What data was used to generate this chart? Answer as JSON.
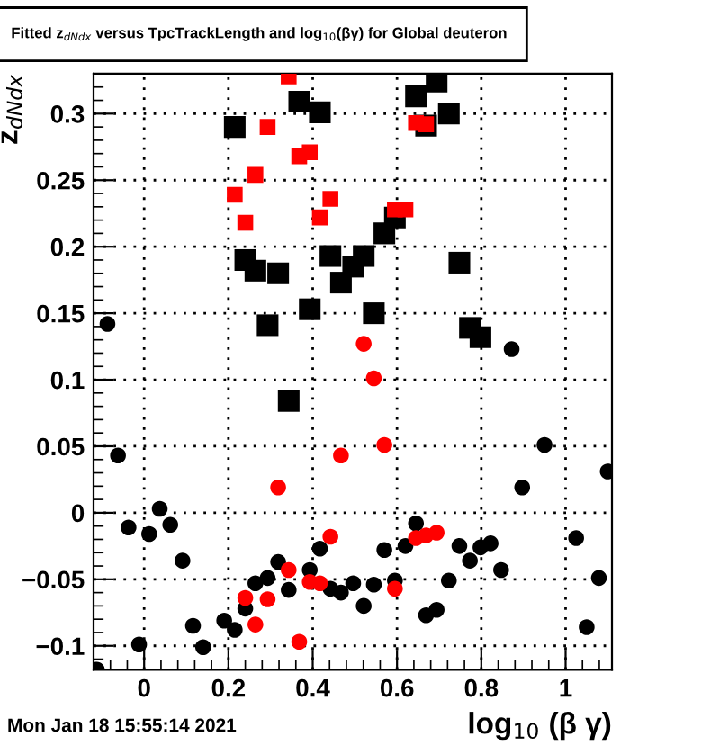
{
  "chart_data": {
    "type": "scatter",
    "title": "Fitted z$_{dNdx}$ versus TpcTrackLength and log$_{10}$(βγ) for Global deuteron",
    "xlabel": "log$_{10}$ (β γ)",
    "ylabel": "z$_{dNdx}$",
    "annotations": [
      "Mon Jan 18 15:55:14 2021"
    ],
    "xlim": [
      -0.12,
      1.11
    ],
    "ylim": [
      -0.118,
      0.33
    ],
    "xticks": [
      0,
      0.2,
      0.4,
      0.6,
      0.8,
      1
    ],
    "yticks": [
      {
        "value": -0.1,
        "label": "−0.1"
      },
      {
        "value": -0.05,
        "label": "−0.05"
      },
      0,
      0.05,
      0.1,
      0.15,
      0.2,
      0.25,
      0.3
    ],
    "grid": true,
    "series": [
      {
        "color": "#000000",
        "marker": "circle",
        "x": [
          -0.112,
          -0.087,
          -0.062,
          -0.037,
          -0.012,
          0.012,
          0.037,
          0.062,
          0.091,
          0.116,
          0.14,
          0.19,
          0.215,
          0.24,
          0.264,
          0.293,
          0.318,
          0.343,
          0.393,
          0.417,
          0.442,
          0.467,
          0.496,
          0.521,
          0.545,
          0.57,
          0.595,
          0.62,
          0.645,
          0.669,
          0.694,
          0.723,
          0.748,
          0.773,
          0.798,
          0.822,
          0.847,
          0.872,
          0.897,
          0.95,
          1.025,
          1.05,
          1.079,
          1.1
        ],
        "values": [
          -0.118,
          0.142,
          0.043,
          -0.011,
          -0.099,
          -0.016,
          0.003,
          -0.009,
          -0.036,
          -0.085,
          -0.101,
          -0.081,
          -0.088,
          -0.072,
          -0.053,
          -0.049,
          -0.037,
          -0.058,
          -0.043,
          -0.027,
          -0.057,
          -0.06,
          -0.053,
          -0.07,
          -0.054,
          -0.028,
          -0.051,
          -0.025,
          -0.008,
          -0.077,
          -0.073,
          -0.051,
          -0.025,
          -0.036,
          -0.026,
          -0.023,
          -0.043,
          0.123,
          0.019,
          0.051,
          -0.019,
          -0.086,
          -0.049,
          0.031
        ]
      },
      {
        "color": "#000000",
        "marker": "square",
        "x": [
          0.215,
          0.24,
          0.264,
          0.293,
          0.318,
          0.343,
          0.368,
          0.393,
          0.417,
          0.442,
          0.467,
          0.496,
          0.521,
          0.545,
          0.57,
          0.595,
          0.645,
          0.669,
          0.694,
          0.723,
          0.748,
          0.773,
          0.798
        ],
        "values": [
          0.29,
          0.19,
          0.182,
          0.141,
          0.18,
          0.084,
          0.309,
          0.153,
          0.301,
          0.193,
          0.173,
          0.185,
          0.193,
          0.15,
          0.21,
          0.222,
          0.313,
          0.291,
          0.324,
          0.3,
          0.188,
          0.139,
          0.132
        ]
      },
      {
        "color": "#ff0000",
        "marker": "square",
        "x": [
          0.215,
          0.24,
          0.264,
          0.293,
          0.343,
          0.368,
          0.393,
          0.417,
          0.442,
          0.595,
          0.62,
          0.645,
          0.669
        ],
        "values": [
          0.239,
          0.218,
          0.254,
          0.29,
          0.328,
          0.268,
          0.271,
          0.222,
          0.236,
          0.228,
          0.228,
          0.293,
          0.292
        ]
      },
      {
        "color": "#ff0000",
        "marker": "circle",
        "x": [
          0.24,
          0.264,
          0.293,
          0.318,
          0.343,
          0.368,
          0.393,
          0.417,
          0.442,
          0.467,
          0.521,
          0.545,
          0.57,
          0.595,
          0.645,
          0.669,
          0.694
        ],
        "values": [
          -0.064,
          -0.084,
          -0.065,
          0.019,
          -0.043,
          -0.097,
          -0.052,
          -0.053,
          -0.018,
          0.043,
          0.127,
          0.101,
          0.051,
          -0.057,
          -0.019,
          -0.017,
          -0.015
        ]
      }
    ]
  }
}
